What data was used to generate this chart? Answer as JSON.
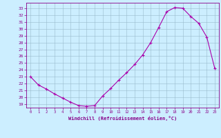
{
  "x": [
    0,
    1,
    2,
    3,
    4,
    5,
    6,
    7,
    8,
    9,
    10,
    11,
    12,
    13,
    14,
    15,
    16,
    17,
    18,
    19,
    20,
    21,
    22,
    23
  ],
  "y": [
    23.0,
    21.8,
    21.2,
    20.5,
    19.9,
    19.3,
    18.8,
    18.7,
    18.8,
    20.2,
    21.3,
    22.5,
    23.6,
    24.8,
    26.2,
    28.0,
    30.2,
    32.5,
    33.1,
    33.0,
    31.8,
    30.8,
    28.8,
    24.2
  ],
  "line_color": "#aa00aa",
  "marker": "+",
  "bg_color": "#cceeff",
  "grid_color": "#99bbcc",
  "xlabel": "Windchill (Refroidissement éolien,°C)",
  "ylim": [
    18.5,
    33.8
  ],
  "xlim": [
    -0.5,
    23.5
  ],
  "yticks": [
    19,
    20,
    21,
    22,
    23,
    24,
    25,
    26,
    27,
    28,
    29,
    30,
    31,
    32,
    33
  ],
  "xticks": [
    0,
    1,
    2,
    3,
    4,
    5,
    6,
    7,
    8,
    9,
    10,
    11,
    12,
    13,
    14,
    15,
    16,
    17,
    18,
    19,
    20,
    21,
    22,
    23
  ],
  "label_color": "#880088",
  "spine_color": "#880088"
}
